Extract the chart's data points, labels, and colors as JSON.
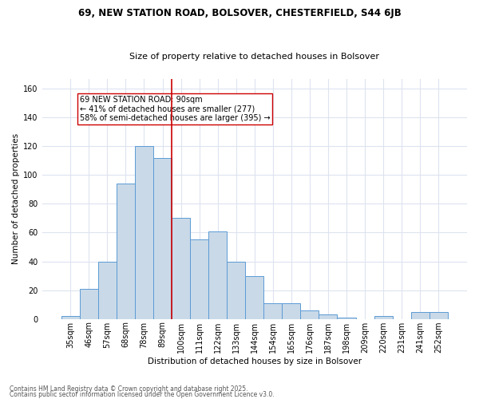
{
  "title1": "69, NEW STATION ROAD, BOLSOVER, CHESTERFIELD, S44 6JB",
  "title2": "Size of property relative to detached houses in Bolsover",
  "xlabel": "Distribution of detached houses by size in Bolsover",
  "ylabel": "Number of detached properties",
  "bar_labels": [
    "35sqm",
    "46sqm",
    "57sqm",
    "68sqm",
    "78sqm",
    "89sqm",
    "100sqm",
    "111sqm",
    "122sqm",
    "133sqm",
    "144sqm",
    "154sqm",
    "165sqm",
    "176sqm",
    "187sqm",
    "198sqm",
    "209sqm",
    "220sqm",
    "231sqm",
    "241sqm",
    "252sqm"
  ],
  "bar_values": [
    2,
    21,
    40,
    94,
    120,
    112,
    70,
    55,
    61,
    40,
    30,
    11,
    11,
    6,
    3,
    1,
    0,
    2,
    0,
    5,
    5
  ],
  "bar_color": "#c9d9e8",
  "bar_edge_color": "#5b9bd5",
  "vline_x": 5.5,
  "vline_color": "#cc0000",
  "annotation_text": "69 NEW STATION ROAD: 90sqm\n← 41% of detached houses are smaller (277)\n58% of semi-detached houses are larger (395) →",
  "annotation_box_color": "#ffffff",
  "annotation_box_edge": "#cc0000",
  "yticks": [
    0,
    20,
    40,
    60,
    80,
    100,
    120,
    140,
    160
  ],
  "ylim": [
    0,
    167
  ],
  "footer1": "Contains HM Land Registry data © Crown copyright and database right 2025.",
  "footer2": "Contains public sector information licensed under the Open Government Licence v3.0.",
  "bg_color": "#ffffff",
  "grid_color": "#dde3ef",
  "title1_fontsize": 8.5,
  "title2_fontsize": 8.0,
  "xlabel_fontsize": 7.5,
  "ylabel_fontsize": 7.5,
  "tick_fontsize": 7.0,
  "annot_fontsize": 7.0,
  "footer_fontsize": 5.5
}
